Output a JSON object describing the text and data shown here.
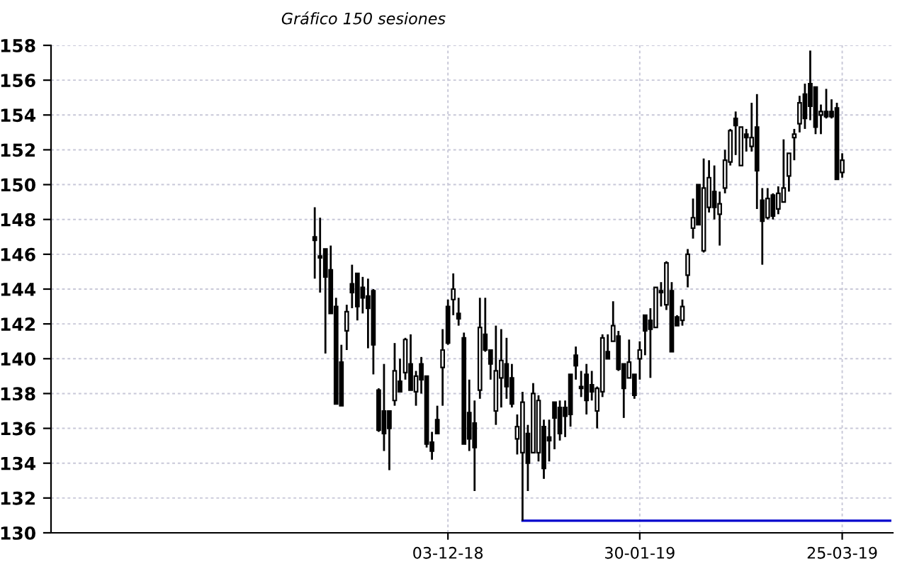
{
  "chart_data": {
    "type": "candlestick",
    "title": "Gráfico 150 sesiones",
    "categories": [
      null,
      null,
      null,
      null,
      null,
      null,
      null,
      null,
      null,
      null,
      null,
      null,
      null,
      null,
      null,
      null,
      null,
      null,
      null,
      null,
      null,
      null,
      null,
      null,
      null,
      null,
      null,
      null,
      null,
      null,
      null,
      null,
      null,
      null,
      null,
      null,
      null,
      null,
      null,
      null,
      null,
      null,
      null,
      null,
      null,
      null,
      null,
      null,
      null,
      null,
      null,
      null,
      null,
      null,
      null,
      null,
      null,
      null,
      null,
      null,
      null,
      null,
      null,
      null,
      null,
      null,
      null,
      null,
      null,
      null,
      null,
      null,
      null,
      null,
      "03-12-18",
      null,
      null,
      null,
      null,
      null,
      null,
      null,
      null,
      null,
      null,
      null,
      null,
      null,
      null,
      null,
      null,
      null,
      null,
      null,
      null,
      null,
      null,
      null,
      null,
      null,
      null,
      null,
      null,
      null,
      null,
      null,
      null,
      null,
      null,
      null,
      "30-01-19",
      null,
      null,
      null,
      null,
      null,
      null,
      null,
      null,
      null,
      null,
      null,
      null,
      null,
      null,
      null,
      null,
      null,
      null,
      null,
      null,
      null,
      null,
      null,
      null,
      null,
      null,
      null,
      null,
      null,
      null,
      null,
      null,
      null,
      null,
      null,
      null,
      null,
      "25-03-19",
      null,
      null,
      null,
      null,
      null,
      null,
      null,
      null,
      null
    ],
    "ohlc": [
      null,
      null,
      null,
      null,
      null,
      null,
      null,
      null,
      null,
      null,
      null,
      null,
      null,
      null,
      null,
      null,
      null,
      null,
      null,
      null,
      null,
      null,
      null,
      null,
      null,
      null,
      null,
      null,
      null,
      null,
      null,
      null,
      null,
      null,
      null,
      null,
      null,
      null,
      null,
      null,
      null,
      null,
      null,
      null,
      null,
      null,
      null,
      null,
      null,
      [
        147.0,
        148.7,
        144.6,
        146.8
      ],
      [
        145.9,
        148.1,
        143.8,
        145.8
      ],
      [
        146.3,
        146.3,
        140.3,
        144.7
      ],
      [
        145.1,
        146.5,
        142.6,
        142.6
      ],
      [
        143.0,
        143.5,
        137.4,
        137.4
      ],
      [
        139.8,
        140.8,
        137.3,
        137.3
      ],
      [
        141.6,
        143.1,
        140.5,
        142.7
      ],
      [
        144.3,
        145.4,
        142.9,
        143.8
      ],
      [
        144.9,
        144.9,
        142.2,
        143.0
      ],
      [
        144.1,
        144.7,
        142.6,
        143.5
      ],
      [
        143.6,
        144.6,
        140.6,
        142.9
      ],
      [
        143.9,
        144.0,
        139.1,
        140.8
      ],
      [
        138.2,
        138.3,
        135.8,
        135.9
      ],
      [
        137.0,
        139.7,
        134.7,
        135.7
      ],
      [
        137.0,
        137.0,
        133.6,
        136.0
      ],
      [
        137.6,
        140.9,
        137.3,
        139.3
      ],
      [
        138.7,
        140.0,
        138.1,
        138.1
      ],
      [
        139.2,
        141.2,
        138.8,
        141.1
      ],
      [
        139.7,
        141.4,
        138.2,
        138.2
      ],
      [
        138.1,
        139.3,
        137.3,
        139.0
      ],
      [
        139.7,
        140.1,
        138.0,
        138.8
      ],
      [
        139.0,
        139.0,
        134.9,
        135.1
      ],
      [
        135.2,
        135.8,
        134.2,
        134.7
      ],
      [
        136.5,
        137.3,
        135.7,
        135.7
      ],
      [
        139.5,
        141.7,
        137.3,
        140.5
      ],
      [
        143.0,
        143.4,
        140.8,
        140.9
      ],
      [
        143.4,
        144.9,
        142.5,
        144.0
      ],
      [
        142.6,
        143.5,
        141.9,
        142.3
      ],
      [
        141.2,
        141.5,
        135.1,
        135.1
      ],
      [
        136.9,
        138.8,
        134.7,
        135.4
      ],
      [
        136.3,
        137.6,
        132.4,
        134.9
      ],
      [
        138.2,
        143.5,
        137.7,
        141.8
      ],
      [
        141.4,
        143.5,
        140.4,
        140.5
      ],
      [
        140.5,
        140.5,
        138.8,
        139.7
      ],
      [
        137.0,
        141.9,
        136.2,
        139.3
      ],
      [
        138.9,
        141.7,
        137.2,
        139.9
      ],
      [
        139.7,
        141.2,
        137.7,
        138.4
      ],
      [
        138.9,
        139.7,
        137.2,
        137.4
      ],
      [
        135.4,
        136.8,
        134.5,
        136.1
      ],
      [
        134.6,
        138.1,
        130.7,
        137.5
      ],
      [
        135.7,
        136.2,
        132.4,
        134.0
      ],
      [
        134.6,
        138.6,
        134.6,
        138.0
      ],
      [
        134.6,
        137.9,
        134.1,
        137.6
      ],
      [
        136.1,
        136.5,
        133.1,
        133.7
      ],
      [
        135.5,
        136.5,
        134.1,
        135.3
      ],
      [
        137.5,
        137.5,
        134.8,
        136.6
      ],
      [
        137.2,
        137.6,
        135.3,
        135.7
      ],
      [
        137.2,
        137.6,
        135.5,
        136.7
      ],
      [
        139.1,
        139.1,
        136.1,
        136.8
      ],
      [
        140.2,
        140.7,
        138.8,
        139.6
      ],
      [
        138.4,
        139.3,
        137.8,
        138.3
      ],
      [
        139.1,
        139.7,
        136.8,
        137.6
      ],
      [
        138.5,
        139.3,
        137.6,
        138.1
      ],
      [
        137.0,
        138.4,
        136.0,
        138.3
      ],
      [
        138.1,
        141.4,
        137.8,
        141.2
      ],
      [
        140.4,
        141.4,
        140.0,
        140.0
      ],
      [
        141.0,
        143.3,
        141.0,
        141.9
      ],
      [
        141.3,
        141.6,
        139.3,
        139.4
      ],
      [
        139.7,
        139.7,
        136.6,
        138.3
      ],
      [
        138.9,
        141.1,
        138.9,
        139.8
      ],
      [
        139.1,
        139.1,
        137.7,
        137.9
      ],
      [
        140.0,
        141.0,
        138.8,
        140.5
      ],
      [
        142.5,
        142.5,
        140.2,
        141.6
      ],
      [
        142.2,
        142.9,
        138.9,
        141.7
      ],
      [
        141.8,
        144.1,
        141.8,
        144.1
      ],
      [
        143.9,
        144.4,
        143.0,
        143.8
      ],
      [
        143.1,
        145.6,
        142.8,
        145.5
      ],
      [
        143.9,
        144.4,
        140.4,
        140.4
      ],
      [
        142.4,
        142.5,
        141.9,
        141.9
      ],
      [
        142.2,
        143.4,
        141.9,
        143.0
      ],
      [
        144.8,
        146.3,
        144.1,
        146.0
      ],
      [
        147.5,
        149.2,
        146.9,
        148.1
      ],
      [
        150.0,
        150.0,
        147.7,
        147.7
      ],
      [
        146.2,
        151.5,
        146.1,
        149.8
      ],
      [
        148.7,
        151.4,
        148.4,
        150.4
      ],
      [
        149.6,
        151.1,
        148.0,
        148.7
      ],
      [
        148.3,
        149.6,
        146.5,
        148.9
      ],
      [
        149.8,
        152.0,
        149.5,
        151.4
      ],
      [
        151.3,
        153.2,
        151.1,
        153.1
      ],
      [
        153.8,
        154.2,
        151.7,
        153.4
      ],
      [
        151.1,
        153.3,
        151.1,
        153.3
      ],
      [
        152.9,
        153.2,
        151.9,
        152.7
      ],
      [
        152.2,
        154.7,
        151.9,
        152.7
      ],
      [
        153.3,
        155.2,
        148.6,
        150.8
      ],
      [
        149.1,
        149.8,
        145.4,
        147.9
      ],
      [
        148.1,
        149.8,
        148.0,
        149.2
      ],
      [
        149.4,
        149.5,
        148.0,
        148.2
      ],
      [
        148.6,
        149.9,
        148.3,
        149.5
      ],
      [
        149.0,
        152.6,
        149.0,
        149.8
      ],
      [
        150.5,
        151.8,
        149.6,
        151.8
      ],
      [
        152.7,
        153.2,
        151.4,
        152.9
      ],
      [
        153.5,
        155.1,
        153.0,
        154.7
      ],
      [
        155.2,
        155.8,
        153.2,
        153.8
      ],
      [
        155.8,
        157.7,
        153.7,
        154.5
      ],
      [
        155.6,
        155.6,
        152.9,
        153.3
      ],
      [
        154.0,
        154.6,
        152.9,
        154.2
      ],
      [
        154.2,
        155.5,
        153.8,
        153.9
      ],
      [
        154.2,
        154.9,
        153.8,
        153.9
      ],
      [
        154.4,
        154.7,
        150.3,
        150.3
      ],
      [
        150.7,
        151.8,
        150.4,
        151.4
      ],
      null,
      null,
      null,
      null,
      null,
      null,
      null,
      null,
      null
    ],
    "series": [
      {
        "type": "line",
        "color": "#0000cc",
        "values": [
          null,
          null,
          null,
          null,
          null,
          null,
          null,
          null,
          null,
          null,
          null,
          null,
          null,
          null,
          null,
          null,
          null,
          null,
          null,
          null,
          null,
          null,
          null,
          null,
          null,
          null,
          null,
          null,
          null,
          null,
          null,
          null,
          null,
          null,
          null,
          null,
          null,
          null,
          null,
          null,
          null,
          null,
          null,
          null,
          null,
          null,
          null,
          null,
          null,
          null,
          null,
          null,
          null,
          null,
          null,
          null,
          null,
          null,
          null,
          null,
          null,
          null,
          null,
          null,
          null,
          null,
          null,
          null,
          null,
          null,
          null,
          null,
          null,
          null,
          null,
          null,
          null,
          null,
          null,
          null,
          null,
          null,
          null,
          null,
          null,
          null,
          null,
          null,
          130.7,
          130.7,
          130.7,
          130.7,
          130.7,
          130.7,
          130.7,
          130.7,
          130.7,
          130.7,
          130.7,
          130.7,
          130.7,
          130.7,
          130.7,
          130.7,
          130.7,
          130.7,
          130.7,
          130.7,
          130.7,
          130.7,
          130.7,
          130.7,
          130.7,
          130.7,
          130.7,
          130.7,
          130.7,
          130.7,
          130.7,
          130.7,
          130.7,
          130.7,
          130.7,
          130.7,
          130.7,
          130.7,
          130.7,
          130.7,
          130.7,
          130.7,
          130.7,
          130.7,
          130.7,
          130.7,
          130.7,
          130.7,
          130.7,
          130.7,
          130.7,
          130.7,
          130.7,
          130.7,
          130.7,
          130.7,
          130.7,
          130.7,
          130.7,
          130.7,
          130.7,
          130.7,
          130.7,
          130.7,
          130.7,
          130.7,
          130.7,
          130.7,
          130.7,
          130.7
        ]
      }
    ],
    "ylim": [
      130,
      158
    ],
    "yticks": [
      130,
      132,
      134,
      136,
      138,
      140,
      142,
      144,
      146,
      148,
      150,
      152,
      154,
      156,
      158
    ],
    "grid": true,
    "legend": false
  }
}
